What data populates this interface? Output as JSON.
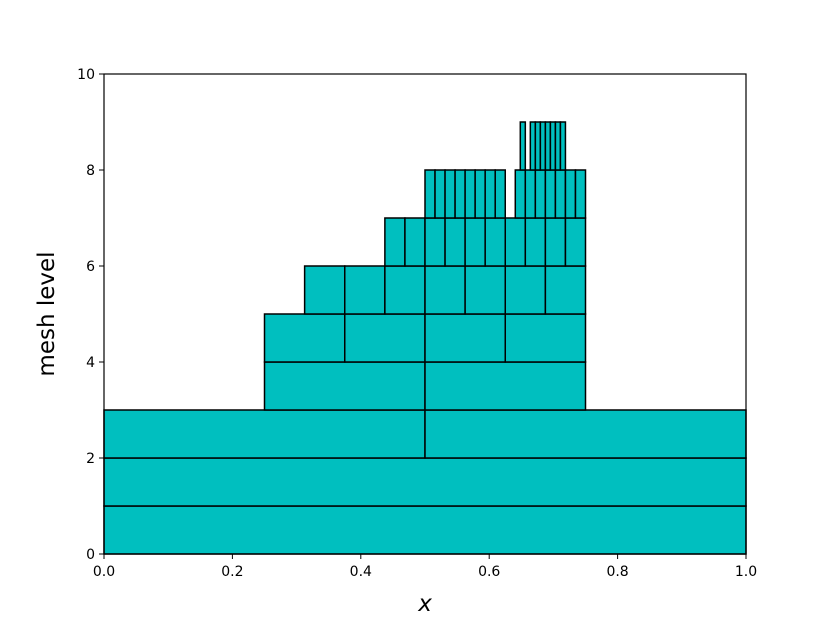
{
  "chart_data": {
    "type": "mesh",
    "xlabel": "x",
    "ylabel": "mesh level",
    "color": "#00bfbf",
    "xlim": [
      0,
      1
    ],
    "ylim": [
      0,
      10
    ],
    "xticks": [
      {
        "value": 0,
        "label": "0.0"
      },
      {
        "value": 0.2,
        "label": "0.2"
      },
      {
        "value": 0.4,
        "label": "0.4"
      },
      {
        "value": 0.6,
        "label": "0.6"
      },
      {
        "value": 0.8,
        "label": "0.8"
      },
      {
        "value": 1,
        "label": "1.0"
      }
    ],
    "yticks": [
      0,
      2,
      4,
      6,
      8,
      10
    ],
    "levels": [
      {
        "y": [
          0,
          1
        ],
        "segments": [
          [
            0,
            1
          ]
        ]
      },
      {
        "y": [
          1,
          2
        ],
        "segments": [
          [
            0,
            1
          ]
        ]
      },
      {
        "y": [
          2,
          3
        ],
        "segments": [
          [
            0,
            0.5,
            1
          ]
        ]
      },
      {
        "y": [
          3,
          4
        ],
        "segments": [
          [
            0.25,
            0.5,
            0.75
          ]
        ]
      },
      {
        "y": [
          4,
          5
        ],
        "segments": [
          [
            0.25,
            0.375,
            0.5,
            0.625,
            0.75
          ]
        ]
      },
      {
        "y": [
          5,
          6
        ],
        "segments": [
          [
            0.3125,
            0.375,
            0.4375,
            0.5,
            0.5625,
            0.625,
            0.6875,
            0.75
          ]
        ]
      },
      {
        "y": [
          6,
          7
        ],
        "segments": [
          [
            0.4375,
            0.46875,
            0.5,
            0.53125,
            0.5625,
            0.59375,
            0.625,
            0.65625,
            0.6875,
            0.71875,
            0.75
          ]
        ]
      },
      {
        "y": [
          7,
          8
        ],
        "segments": [
          [
            0.5,
            0.515625,
            0.53125,
            0.546875,
            0.5625,
            0.578125,
            0.59375,
            0.609375,
            0.625
          ],
          [
            0.640625,
            0.65625,
            0.671875,
            0.6875,
            0.703125,
            0.71875,
            0.734375,
            0.75
          ]
        ]
      },
      {
        "y": [
          8,
          9
        ],
        "segments": [
          [
            0.6484375,
            0.65625
          ],
          [
            0.6640625,
            0.671875,
            0.6796875,
            0.6875,
            0.6953125,
            0.703125,
            0.7109375,
            0.71875
          ]
        ]
      }
    ]
  }
}
